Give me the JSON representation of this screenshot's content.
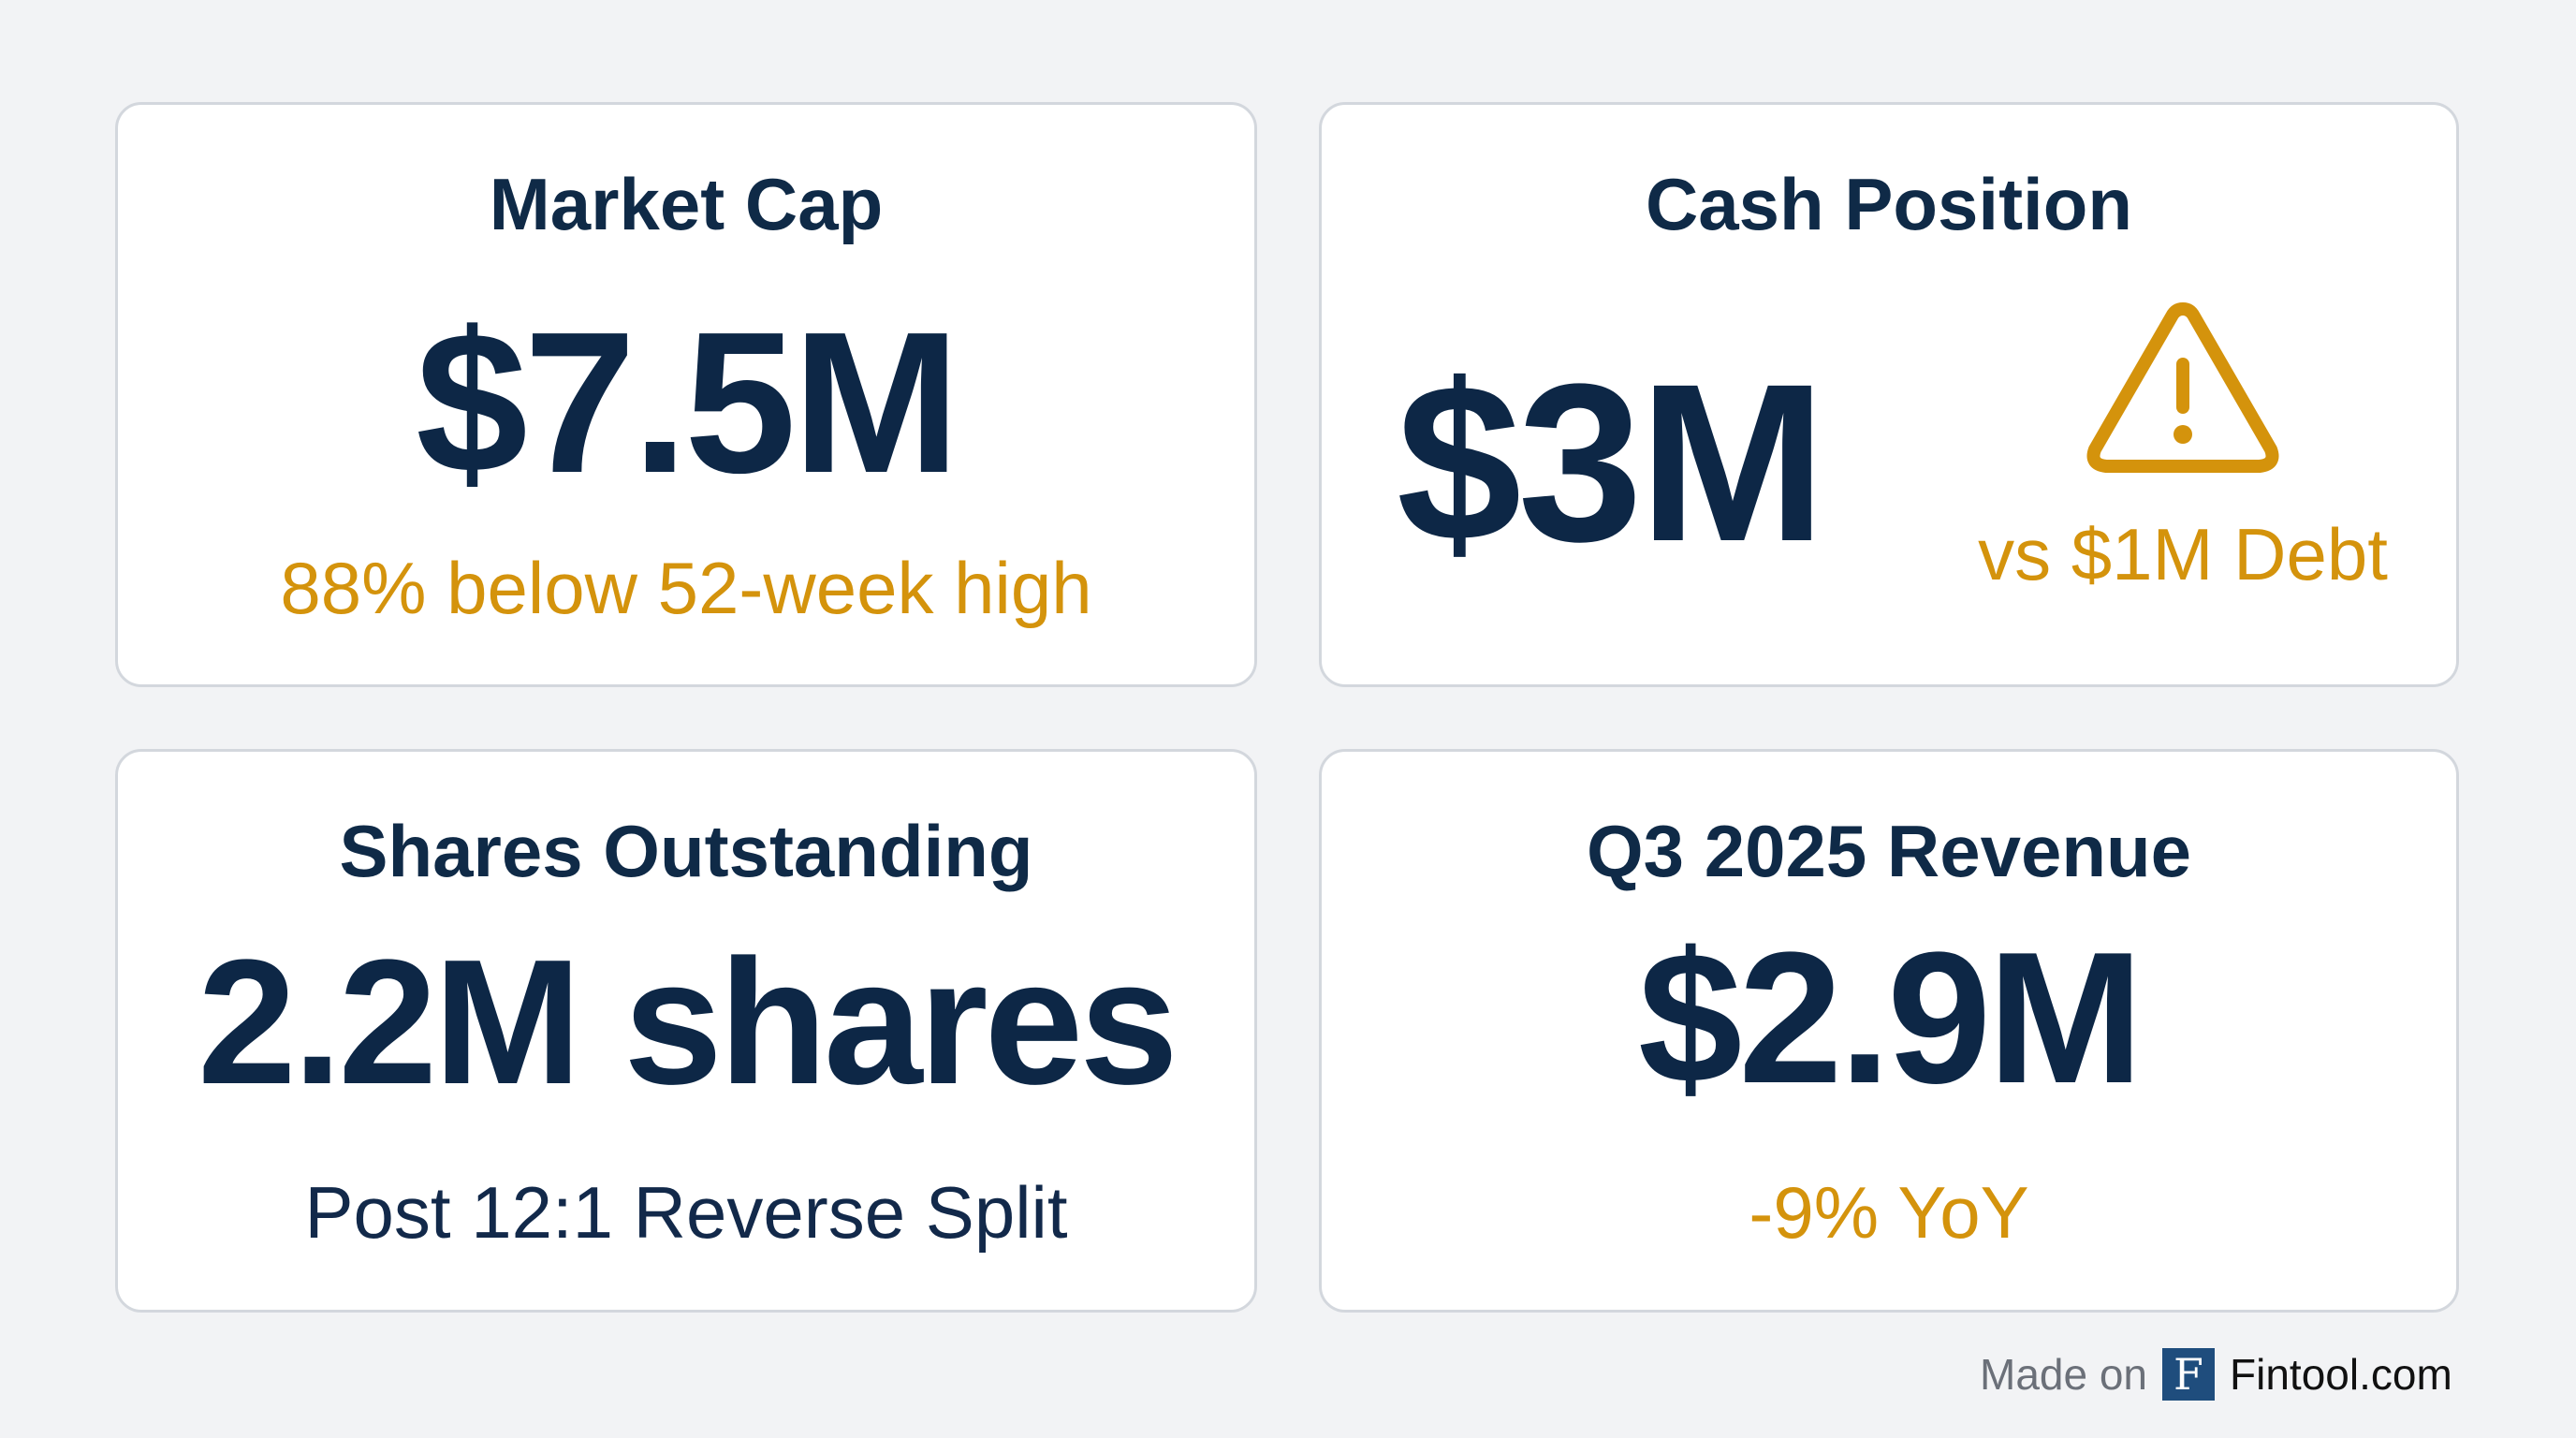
{
  "colors": {
    "primary": "#0d2746",
    "accent": "#d4930c",
    "background": "#f2f3f5"
  },
  "cards": [
    {
      "title": "Market Cap",
      "value": "$7.5M",
      "subtitle": "88% below 52-week high"
    },
    {
      "title": "Cash Position",
      "value": "$3M",
      "subtitle": "vs $1M Debt",
      "icon": "warning-triangle-icon"
    },
    {
      "title": "Shares Outstanding",
      "value": "2.2M shares",
      "subtitle": "Post 12:1 Reverse Split"
    },
    {
      "title": "Q3 2025 Revenue",
      "value": "$2.9M",
      "subtitle": "-9% YoY"
    }
  ],
  "footer": {
    "made_on": "Made on",
    "logo_letter": "F",
    "brand": "Fintool.com"
  }
}
